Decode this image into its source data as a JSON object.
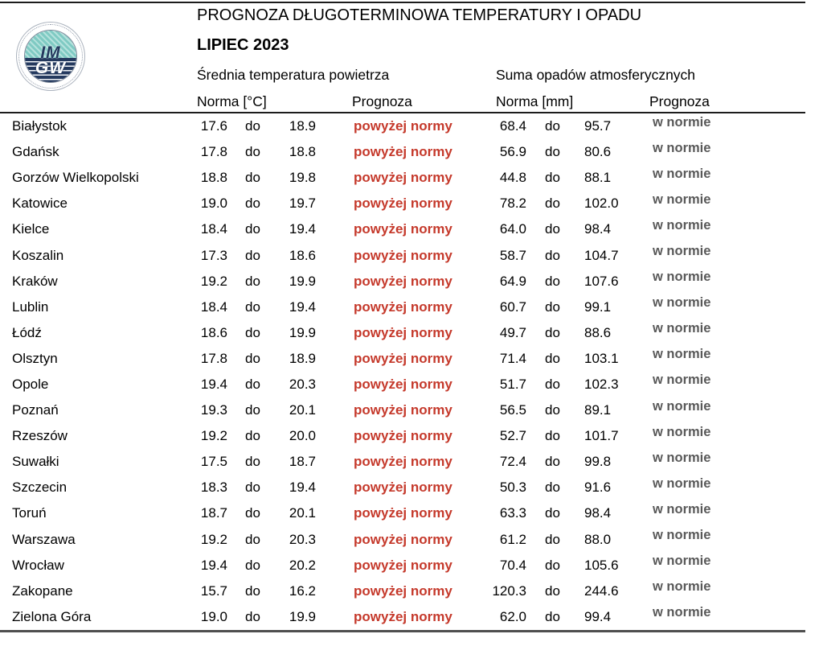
{
  "header": {
    "title": "PROGNOZA DŁUGOTERMINOWA TEMPERATURY I OPADU",
    "month": "LIPIEC 2023",
    "logo": {
      "line1": "IM",
      "line2": "GW"
    }
  },
  "table": {
    "temp_section": "Średnia temperatura powietrza",
    "precip_section": "Suma opadów atmosferycznych",
    "temp_norm_header": "Norma [°C]",
    "temp_forecast_header": "Prognoza",
    "precip_norm_header": "Norma [mm]",
    "precip_forecast_header": "Prognoza",
    "separator": "do",
    "rows": [
      {
        "city": "Białystok",
        "temp_min": "17.6",
        "temp_max": "18.9",
        "temp_forecast": "powyżej normy",
        "precip_min": "68.4",
        "precip_max": "95.7",
        "precip_forecast": "w normie"
      },
      {
        "city": "Gdańsk",
        "temp_min": "17.8",
        "temp_max": "18.8",
        "temp_forecast": "powyżej normy",
        "precip_min": "56.9",
        "precip_max": "80.6",
        "precip_forecast": "w normie"
      },
      {
        "city": "Gorzów Wielkopolski",
        "temp_min": "18.8",
        "temp_max": "19.8",
        "temp_forecast": "powyżej normy",
        "precip_min": "44.8",
        "precip_max": "88.1",
        "precip_forecast": "w normie"
      },
      {
        "city": "Katowice",
        "temp_min": "19.0",
        "temp_max": "19.7",
        "temp_forecast": "powyżej normy",
        "precip_min": "78.2",
        "precip_max": "102.0",
        "precip_forecast": "w normie"
      },
      {
        "city": "Kielce",
        "temp_min": "18.4",
        "temp_max": "19.4",
        "temp_forecast": "powyżej normy",
        "precip_min": "64.0",
        "precip_max": "98.4",
        "precip_forecast": "w normie"
      },
      {
        "city": "Koszalin",
        "temp_min": "17.3",
        "temp_max": "18.6",
        "temp_forecast": "powyżej normy",
        "precip_min": "58.7",
        "precip_max": "104.7",
        "precip_forecast": "w normie"
      },
      {
        "city": "Kraków",
        "temp_min": "19.2",
        "temp_max": "19.9",
        "temp_forecast": "powyżej normy",
        "precip_min": "64.9",
        "precip_max": "107.6",
        "precip_forecast": "w normie"
      },
      {
        "city": "Lublin",
        "temp_min": "18.4",
        "temp_max": "19.4",
        "temp_forecast": "powyżej normy",
        "precip_min": "60.7",
        "precip_max": "99.1",
        "precip_forecast": "w normie"
      },
      {
        "city": "Łódź",
        "temp_min": "18.6",
        "temp_max": "19.9",
        "temp_forecast": "powyżej normy",
        "precip_min": "49.7",
        "precip_max": "88.6",
        "precip_forecast": "w normie"
      },
      {
        "city": "Olsztyn",
        "temp_min": "17.8",
        "temp_max": "18.9",
        "temp_forecast": "powyżej normy",
        "precip_min": "71.4",
        "precip_max": "103.1",
        "precip_forecast": "w normie"
      },
      {
        "city": "Opole",
        "temp_min": "19.4",
        "temp_max": "20.3",
        "temp_forecast": "powyżej normy",
        "precip_min": "51.7",
        "precip_max": "102.3",
        "precip_forecast": "w normie"
      },
      {
        "city": "Poznań",
        "temp_min": "19.3",
        "temp_max": "20.1",
        "temp_forecast": "powyżej normy",
        "precip_min": "56.5",
        "precip_max": "89.1",
        "precip_forecast": "w normie"
      },
      {
        "city": "Rzeszów",
        "temp_min": "19.2",
        "temp_max": "20.0",
        "temp_forecast": "powyżej normy",
        "precip_min": "52.7",
        "precip_max": "101.7",
        "precip_forecast": "w normie"
      },
      {
        "city": "Suwałki",
        "temp_min": "17.5",
        "temp_max": "18.7",
        "temp_forecast": "powyżej normy",
        "precip_min": "72.4",
        "precip_max": "99.8",
        "precip_forecast": "w normie"
      },
      {
        "city": "Szczecin",
        "temp_min": "18.3",
        "temp_max": "19.4",
        "temp_forecast": "powyżej normy",
        "precip_min": "50.3",
        "precip_max": "91.6",
        "precip_forecast": "w normie"
      },
      {
        "city": "Toruń",
        "temp_min": "18.7",
        "temp_max": "20.1",
        "temp_forecast": "powyżej normy",
        "precip_min": "63.3",
        "precip_max": "98.4",
        "precip_forecast": "w normie"
      },
      {
        "city": "Warszawa",
        "temp_min": "19.2",
        "temp_max": "20.3",
        "temp_forecast": "powyżej normy",
        "precip_min": "61.2",
        "precip_max": "88.0",
        "precip_forecast": "w normie"
      },
      {
        "city": "Wrocław",
        "temp_min": "19.4",
        "temp_max": "20.2",
        "temp_forecast": "powyżej normy",
        "precip_min": "70.4",
        "precip_max": "105.6",
        "precip_forecast": "w normie"
      },
      {
        "city": "Zakopane",
        "temp_min": "15.7",
        "temp_max": "16.2",
        "temp_forecast": "powyżej normy",
        "precip_min": "120.3",
        "precip_max": "244.6",
        "precip_forecast": "w normie"
      },
      {
        "city": "Zielona Góra",
        "temp_min": "19.0",
        "temp_max": "19.9",
        "temp_forecast": "powyżej normy",
        "precip_min": "62.0",
        "precip_max": "99.4",
        "precip_forecast": "w normie"
      }
    ]
  },
  "colors": {
    "forecast_above_red": "#c5392b",
    "forecast_norm_gray": "#595959",
    "logo_teal": "#7fcac3",
    "logo_navy": "#24395e"
  }
}
